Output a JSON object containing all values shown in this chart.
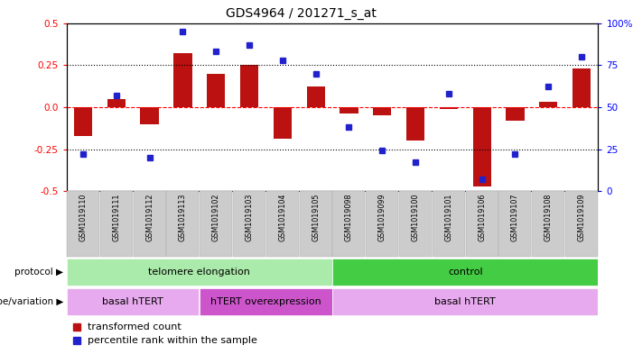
{
  "title": "GDS4964 / 201271_s_at",
  "samples": [
    "GSM1019110",
    "GSM1019111",
    "GSM1019112",
    "GSM1019113",
    "GSM1019102",
    "GSM1019103",
    "GSM1019104",
    "GSM1019105",
    "GSM1019098",
    "GSM1019099",
    "GSM1019100",
    "GSM1019101",
    "GSM1019106",
    "GSM1019107",
    "GSM1019108",
    "GSM1019109"
  ],
  "bar_values": [
    -0.17,
    0.05,
    -0.1,
    0.32,
    0.2,
    0.25,
    -0.19,
    0.12,
    -0.04,
    -0.05,
    -0.2,
    -0.01,
    -0.47,
    -0.08,
    0.03,
    0.23
  ],
  "dot_values": [
    22,
    57,
    20,
    95,
    83,
    87,
    78,
    70,
    38,
    24,
    17,
    58,
    7,
    22,
    62,
    80
  ],
  "ylim_left": [
    -0.5,
    0.5
  ],
  "ylim_right": [
    0,
    100
  ],
  "yticks_left": [
    -0.5,
    -0.25,
    0.0,
    0.25,
    0.5
  ],
  "yticks_right": [
    0,
    25,
    50,
    75,
    100
  ],
  "ytick_labels_right": [
    "0",
    "25",
    "50",
    "75",
    "100%"
  ],
  "dotted_lines": [
    -0.25,
    0.25
  ],
  "bar_color": "#BB1111",
  "dot_color": "#2222CC",
  "protocol_groups": [
    {
      "label": "telomere elongation",
      "start": 0,
      "end": 7,
      "color": "#AAEAAA"
    },
    {
      "label": "control",
      "start": 8,
      "end": 15,
      "color": "#44CC44"
    }
  ],
  "genotype_groups": [
    {
      "label": "basal hTERT",
      "start": 0,
      "end": 3,
      "color": "#E8AAEE"
    },
    {
      "label": "hTERT overexpression",
      "start": 4,
      "end": 7,
      "color": "#CC55CC"
    },
    {
      "label": "basal hTERT",
      "start": 8,
      "end": 15,
      "color": "#E8AAEE"
    }
  ],
  "legend_items": [
    {
      "color": "#BB1111",
      "label": "transformed count"
    },
    {
      "color": "#2222CC",
      "label": "percentile rank within the sample"
    }
  ],
  "protocol_label": "protocol",
  "genotype_label": "genotype/variation"
}
